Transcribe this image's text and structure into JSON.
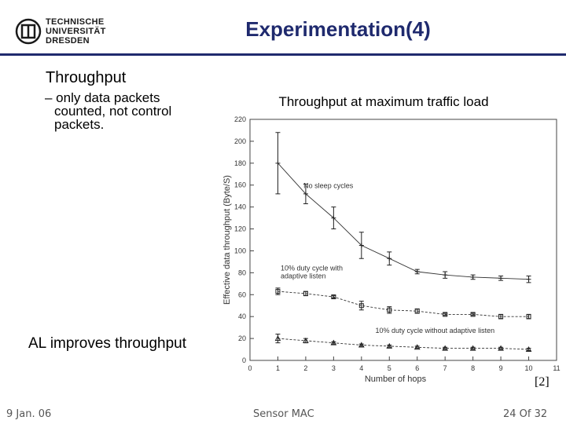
{
  "header": {
    "logo_lines": [
      "TECHNISCHE",
      "UNIVERSITÄT",
      "DRESDEN"
    ],
    "title": "Experimentation(4)"
  },
  "content": {
    "bullet_main": "Throughput",
    "bullet_sub_line1": "– only data packets",
    "bullet_sub_line2": "counted, not control",
    "bullet_sub_line3": "packets.",
    "annotation": "AL improves throughput",
    "reference": "[2]"
  },
  "footer": {
    "date": "9 Jan. 06",
    "center": "Sensor MAC",
    "page": "24 Of 32"
  },
  "chart_data": {
    "type": "line",
    "title": "Throughput at maximum traffic load",
    "xlabel": "Number of hops",
    "ylabel": "Effective data throughput (Byte/S)",
    "xlim": [
      0,
      11
    ],
    "ylim": [
      0,
      220
    ],
    "xticks": [
      0,
      1,
      2,
      3,
      4,
      5,
      6,
      7,
      8,
      9,
      10,
      11
    ],
    "yticks": [
      0,
      20,
      40,
      60,
      80,
      100,
      120,
      140,
      160,
      180,
      200,
      220
    ],
    "grid": false,
    "x": [
      1,
      2,
      3,
      4,
      5,
      6,
      7,
      8,
      9,
      10
    ],
    "series": [
      {
        "name": "No sleep cycles",
        "marker": "plus",
        "values": [
          180,
          152,
          130,
          105,
          93,
          81,
          78,
          76,
          75,
          74
        ],
        "err": [
          28,
          9,
          10,
          12,
          6,
          2,
          3,
          2,
          2,
          3
        ]
      },
      {
        "name": "10% duty cycle with adaptive listen",
        "marker": "square",
        "values": [
          63,
          61,
          58,
          50,
          46,
          45,
          42,
          42,
          40,
          40
        ],
        "err": [
          3,
          2,
          1,
          4,
          3,
          2,
          1,
          1,
          2,
          2
        ]
      },
      {
        "name": "10% duty cycle without adaptive listen",
        "marker": "triangle",
        "values": [
          20,
          18,
          16,
          14,
          13,
          12,
          11,
          11,
          11,
          10
        ],
        "err": [
          4,
          2,
          1,
          1,
          1,
          1,
          1,
          1,
          1,
          1
        ]
      }
    ]
  }
}
